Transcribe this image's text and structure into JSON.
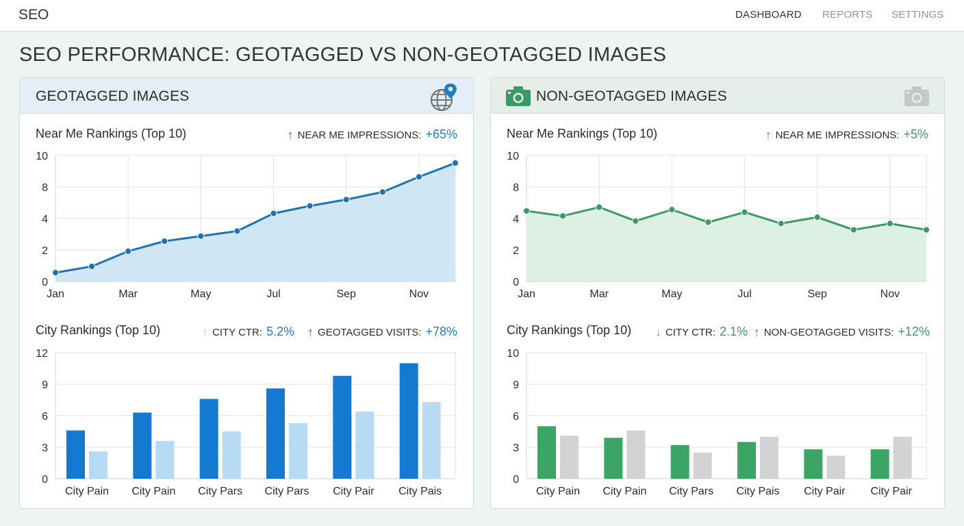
{
  "app": {
    "brand": "SEO"
  },
  "nav": [
    {
      "label": "DASHBOARD",
      "active": true
    },
    {
      "label": "REPORTS",
      "active": false
    },
    {
      "label": "SETTINGS",
      "active": false
    }
  ],
  "page_title": "SEO PERFORMANCE: GEOTAGGED VS NON-GEOTAGGED IMAGES",
  "colors": {
    "geo_line": "#1f72b4",
    "geo_fill": "#cfe5f4",
    "non_line": "#3b9a66",
    "non_fill": "#daf0e2",
    "geo_bar_a": "#1479d0",
    "geo_bar_b": "#b6dbf2",
    "non_bar_a": "#3aa565",
    "non_bar_b": "#d2d4d4",
    "geo_text": "#1f80c4",
    "non_text": "#3b9a66"
  },
  "panels": {
    "geo": {
      "title": "GEOTAGGED IMAGES",
      "header_icon": "globe-pin-icon",
      "near_title": "Near Me Rankings (Top 10)",
      "near_metric": {
        "arrow": "↑",
        "label": "NEAR ME IMPRESSIONS:",
        "value": "+65%"
      },
      "city_title": "City Rankings (Top 10)",
      "city_metric1": {
        "arrow": "↑",
        "label": "CITY CTR:",
        "value": "5.2%"
      },
      "city_metric2": {
        "arrow": "↑",
        "label": "GEOTAGGED VISITS:",
        "value": "+78%"
      }
    },
    "non": {
      "title": "NON-GEOTAGGED IMAGES",
      "title_icon": "camera-icon",
      "header_icon": "camera-disabled-icon",
      "near_title": "Near Me Rankings (Top 10)",
      "near_metric": {
        "arrow": "↑",
        "label": "NEAR ME IMPRESSIONS:",
        "value": "+5%"
      },
      "city_title": "City Rankings (Top 10)",
      "city_metric1": {
        "arrow": "↓",
        "label": "CITY CTR:",
        "value": "2.1%"
      },
      "city_metric2": {
        "arrow": "↑",
        "label": "NON-GEOTAGGED VISITS:",
        "value": "+12%"
      }
    }
  },
  "chart_data": [
    {
      "id": "geo-near",
      "type": "area",
      "title": "Near Me Rankings (Top 10)",
      "x_tick_labels": [
        "Jan",
        "Mar",
        "May",
        "Jul",
        "Sep",
        "Nov"
      ],
      "y_ticks": [
        "0",
        "2",
        "4",
        "8",
        "10"
      ],
      "ylim": [
        0,
        10
      ],
      "x": [
        "Jan",
        "Feb",
        "Mar",
        "Apr",
        "May",
        "Jun",
        "Jul",
        "Aug",
        "Sep",
        "Oct",
        "Nov",
        "Dec"
      ],
      "values": [
        0.7,
        1.2,
        2.4,
        3.2,
        3.6,
        4.0,
        5.4,
        6.0,
        6.5,
        7.1,
        8.3,
        9.4
      ],
      "grid": true
    },
    {
      "id": "non-near",
      "type": "area",
      "title": "Near Me Rankings (Top 10)",
      "x_tick_labels": [
        "Jan",
        "Mar",
        "May",
        "Jul",
        "Sep",
        "Nov"
      ],
      "y_ticks": [
        "0",
        "2",
        "4",
        "8",
        "10"
      ],
      "ylim": [
        0,
        10
      ],
      "x": [
        "Jan",
        "Feb",
        "Mar",
        "Apr",
        "May",
        "Jun",
        "Jul",
        "Aug",
        "Sep",
        "Oct",
        "Nov",
        "Dec"
      ],
      "values": [
        5.6,
        5.2,
        5.9,
        4.8,
        5.7,
        4.7,
        5.5,
        4.6,
        5.1,
        4.1,
        4.6,
        4.1
      ],
      "grid": true
    },
    {
      "id": "geo-city",
      "type": "bar",
      "title": "City Rankings (Top 10)",
      "categories": [
        "City Pain",
        "City Pain",
        "City Pars",
        "City Pars",
        "City Pair",
        "City Pais"
      ],
      "y_ticks": [
        "0",
        "3",
        "6",
        "9",
        "12"
      ],
      "ylim": [
        0,
        12
      ],
      "series": [
        {
          "values": [
            4.6,
            6.3,
            7.6,
            8.6,
            9.8,
            11.0
          ]
        },
        {
          "values": [
            2.6,
            3.6,
            4.5,
            5.3,
            6.4,
            7.3
          ]
        }
      ],
      "grid": true
    },
    {
      "id": "non-city",
      "type": "bar",
      "title": "City Rankings (Top 10)",
      "categories": [
        "City Pain",
        "City Pain",
        "City Pars",
        "City Pais",
        "City Pair",
        "City Pair"
      ],
      "y_ticks": [
        "0",
        "3",
        "6",
        "9",
        "10"
      ],
      "ylim": [
        0,
        12
      ],
      "series": [
        {
          "values": [
            5.0,
            3.9,
            3.2,
            3.5,
            2.8,
            2.8
          ]
        },
        {
          "values": [
            4.1,
            4.6,
            2.5,
            4.0,
            2.2,
            4.0
          ]
        }
      ],
      "grid": true
    }
  ]
}
